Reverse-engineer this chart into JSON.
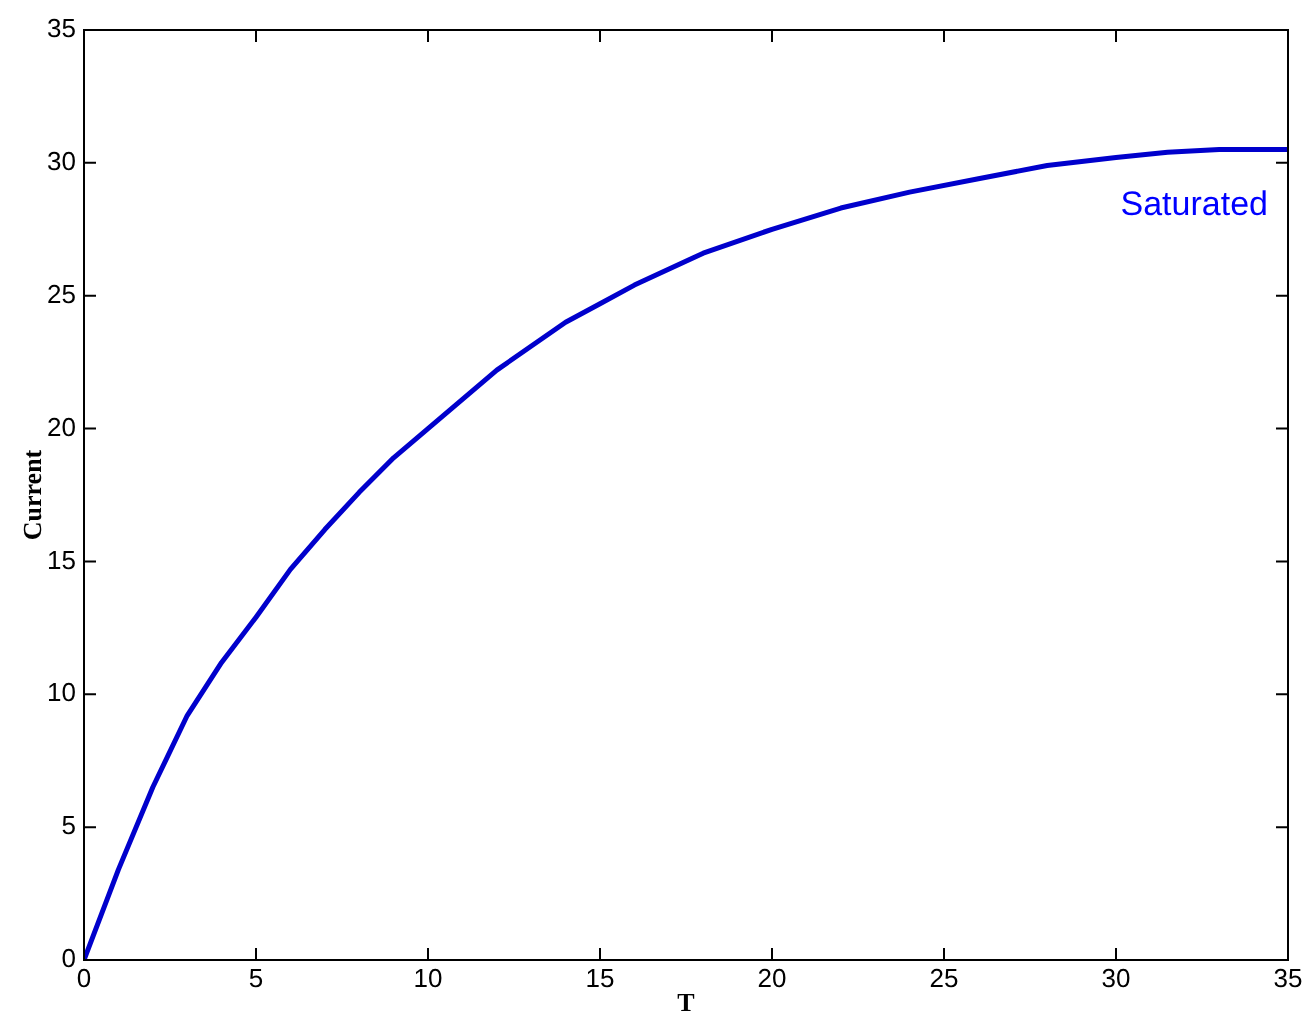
{
  "chart_data": {
    "type": "line",
    "xlabel": "T",
    "ylabel": "Current",
    "x": [
      0,
      1,
      2,
      3,
      4,
      5,
      6,
      7,
      8,
      9,
      10,
      12,
      14,
      15,
      16,
      18,
      20,
      22,
      24,
      26,
      28,
      30,
      31.5,
      33,
      35
    ],
    "series": [
      {
        "color": "#0000cc",
        "values": [
          0,
          3.4,
          6.5,
          9.2,
          11.2,
          12.9,
          14.7,
          16.2,
          17.6,
          18.9,
          20.0,
          22.2,
          24.0,
          24.7,
          25.4,
          26.6,
          27.5,
          28.3,
          28.9,
          29.4,
          29.9,
          30.2,
          30.4,
          30.5,
          30.5
        ]
      }
    ],
    "xlim": [
      0,
      35
    ],
    "xticks": [
      0,
      5,
      10,
      15,
      20,
      25,
      30,
      35
    ],
    "ylim": [
      0,
      35
    ],
    "yticks": [
      0,
      5,
      10,
      15,
      20,
      25,
      30,
      35
    ],
    "annotations": [
      "Saturated"
    ],
    "marker": "none",
    "line_style": "solid",
    "legend": false,
    "grid": false
  }
}
